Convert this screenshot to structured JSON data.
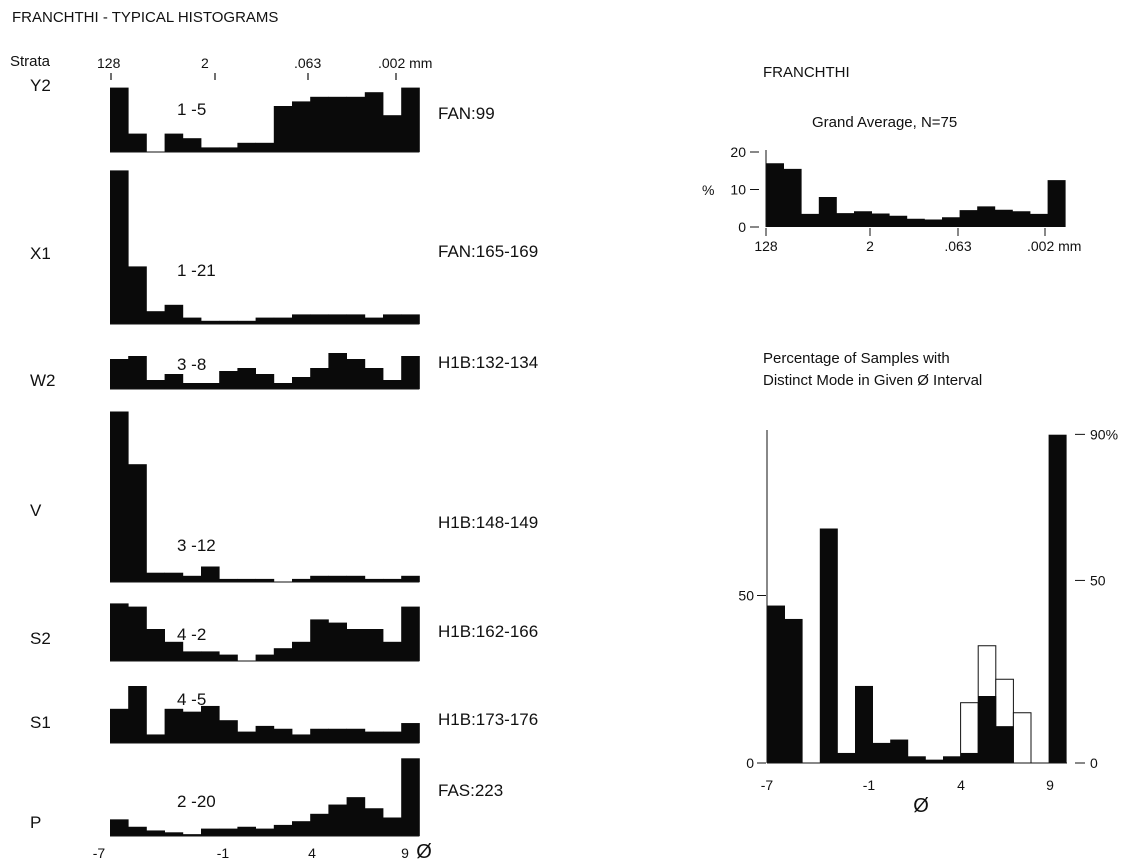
{
  "left_panel": {
    "title": "FRANCHTHI - TYPICAL HISTOGRAMS",
    "strata_header": "Strata",
    "top_ticks": [
      "128",
      "2",
      ".063",
      ".002 mm"
    ],
    "bottom_ticks": [
      "-7",
      "-1",
      "4",
      "9"
    ],
    "phi_symbol": "Ø"
  },
  "right_top": {
    "site_title": "FRANCHTHI",
    "chart_title": "Grand Average, N=75",
    "y_unit": "%",
    "y_ticks": [
      "20",
      "10",
      "0"
    ],
    "x_ticks": [
      "128",
      "2",
      ".063",
      ".002 mm"
    ]
  },
  "right_bottom": {
    "title_line1": "Percentage of Samples with",
    "title_line2": "Distinct Mode in Given Ø Interval",
    "left_ticks": [
      "50",
      "0"
    ],
    "right_ticks": [
      "90%",
      "50",
      "0"
    ],
    "x_ticks": [
      "-7",
      "-1",
      "4",
      "9"
    ],
    "x_label": "Ø"
  },
  "colors": {
    "bar": "#0a0a0a",
    "outline_bar": "#ffffff",
    "axis": "#111111"
  },
  "chart_data": [
    {
      "type": "bar",
      "title": "FRANCHTHI - TYPICAL HISTOGRAMS",
      "x": [
        -7,
        -6,
        -5,
        -4,
        -3,
        -2,
        -1,
        0,
        1,
        2,
        3,
        4,
        5,
        6,
        7,
        8,
        9
      ],
      "xlabel": "Ø",
      "series": [
        {
          "name": "Y2",
          "sample": "1 -5",
          "site": "FAN:99",
          "values": [
            14,
            4,
            0,
            4,
            3,
            1,
            1,
            2,
            2,
            10,
            11,
            12,
            12,
            12,
            13,
            8,
            14
          ]
        },
        {
          "name": "X1",
          "sample": "1 -21",
          "site": "FAN:165-169",
          "values": [
            48,
            18,
            4,
            6,
            2,
            1,
            1,
            1,
            2,
            2,
            3,
            3,
            3,
            3,
            2,
            3,
            3
          ]
        },
        {
          "name": "W2",
          "sample": "3 -8",
          "site": "H1B:132-134",
          "values": [
            10,
            11,
            3,
            5,
            2,
            2,
            6,
            7,
            5,
            2,
            4,
            7,
            12,
            10,
            7,
            3,
            11
          ]
        },
        {
          "name": "V",
          "sample": "3 -12",
          "site": "H1B:148-149",
          "values": [
            55,
            38,
            3,
            3,
            2,
            5,
            1,
            1,
            1,
            0,
            1,
            2,
            2,
            2,
            1,
            1,
            2
          ]
        },
        {
          "name": "S2",
          "sample": "4 -2",
          "site": "H1B:162-166",
          "values": [
            18,
            17,
            10,
            6,
            3,
            3,
            2,
            0,
            2,
            4,
            6,
            13,
            12,
            10,
            10,
            6,
            17
          ]
        },
        {
          "name": "S1",
          "sample": "4 -5",
          "site": "H1B:173-176",
          "values": [
            12,
            20,
            3,
            12,
            11,
            13,
            8,
            4,
            6,
            5,
            3,
            5,
            5,
            5,
            4,
            4,
            7
          ]
        },
        {
          "name": "P",
          "sample": "2 -20",
          "site": "FAS:223",
          "values": [
            9,
            5,
            3,
            2,
            1,
            4,
            4,
            5,
            4,
            6,
            8,
            12,
            17,
            21,
            15,
            10,
            42
          ]
        }
      ]
    },
    {
      "type": "bar",
      "title": "Grand Average, N=75",
      "x": [
        -7,
        -6,
        -5,
        -4,
        -3,
        -2,
        -1,
        0,
        1,
        2,
        3,
        4,
        5,
        6,
        7,
        8,
        9
      ],
      "ylabel": "%",
      "ylim": [
        0,
        20
      ],
      "series": [
        {
          "name": "Grand Average",
          "values": [
            17,
            15.5,
            3.5,
            8,
            3.7,
            4.2,
            3.6,
            3,
            2.2,
            2,
            2.6,
            4.5,
            5.5,
            4.6,
            4.2,
            3.5,
            12.5
          ]
        }
      ]
    },
    {
      "type": "bar",
      "title": "Percentage of Samples with Distinct Mode in Given Ø Interval",
      "x": [
        -7,
        -6,
        -5,
        -4,
        -3,
        -2,
        -1,
        0,
        1,
        2,
        3,
        4,
        5,
        6,
        7,
        8,
        9
      ],
      "xlabel": "Ø",
      "ylim": [
        0,
        100
      ],
      "series": [
        {
          "name": "filled",
          "values": [
            47,
            43,
            0,
            70,
            3,
            23,
            6,
            7,
            2,
            1,
            2,
            3,
            20,
            11,
            0,
            0,
            98
          ]
        },
        {
          "name": "open",
          "values": [
            0,
            0,
            0,
            0,
            0,
            0,
            0,
            0,
            0,
            0,
            0,
            18,
            35,
            25,
            15,
            0,
            0
          ]
        }
      ]
    }
  ]
}
